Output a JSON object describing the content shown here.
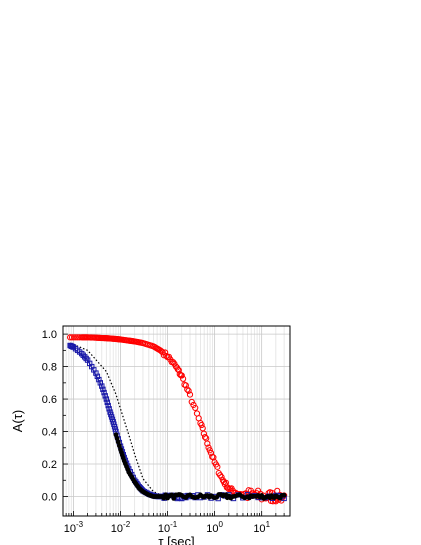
{
  "chart_data": {
    "type": "scatter",
    "title": "",
    "xlabel": "τ [sec]",
    "ylabel": "A(τ)",
    "xscale": "log",
    "xlim": [
      0.0006,
      40
    ],
    "ylim": [
      -0.12,
      1.05
    ],
    "x_ticks": [
      {
        "value": 0.001,
        "base": "10",
        "exp": "-3"
      },
      {
        "value": 0.01,
        "base": "10",
        "exp": "-2"
      },
      {
        "value": 0.1,
        "base": "10",
        "exp": "-1"
      },
      {
        "value": 1,
        "base": "10",
        "exp": "0"
      },
      {
        "value": 10,
        "base": "10",
        "exp": "1"
      }
    ],
    "y_ticks": [
      "0.0",
      "0.2",
      "0.4",
      "0.6",
      "0.8",
      "1.0"
    ],
    "grid": true,
    "legend": "none",
    "series": [
      {
        "color": "#ff0000",
        "marker": "open-circle",
        "x": [
          0.00085,
          0.0015,
          0.002,
          0.003,
          0.004,
          0.005,
          0.006,
          0.008,
          0.01,
          0.015,
          0.02,
          0.03,
          0.05,
          0.07,
          0.1,
          0.15,
          0.2,
          0.3,
          0.5,
          0.7,
          1.0,
          1.5,
          2.0,
          3.0,
          5.0,
          7.0,
          10,
          15,
          20,
          30
        ],
        "y": [
          0.98,
          0.98,
          0.98,
          0.978,
          0.976,
          0.975,
          0.973,
          0.97,
          0.967,
          0.96,
          0.955,
          0.945,
          0.925,
          0.9,
          0.865,
          0.8,
          0.74,
          0.62,
          0.45,
          0.33,
          0.21,
          0.1,
          0.05,
          0.02,
          0.01,
          0.01,
          0.0,
          0.0,
          0.0,
          0.0
        ]
      },
      {
        "color": "#1a1aa8",
        "marker": "open-square",
        "x": [
          0.00085,
          0.001,
          0.0015,
          0.002,
          0.003,
          0.004,
          0.005,
          0.006,
          0.007,
          0.008,
          0.01,
          0.012,
          0.015,
          0.02,
          0.025,
          0.03,
          0.04,
          0.05,
          0.06,
          0.08,
          0.1,
          0.15,
          0.2,
          0.3,
          0.5,
          1.0,
          2.0,
          5.0,
          10,
          20,
          30
        ],
        "y": [
          0.93,
          0.92,
          0.88,
          0.84,
          0.76,
          0.68,
          0.6,
          0.52,
          0.46,
          0.4,
          0.31,
          0.24,
          0.17,
          0.1,
          0.06,
          0.035,
          0.015,
          0.005,
          0.0,
          0.0,
          -0.005,
          0.0,
          0.0,
          0.0,
          0.0,
          0.0,
          0.0,
          0.0,
          0.0,
          0.0,
          0.0
        ]
      },
      {
        "color": "#000000",
        "marker": "filled-circle",
        "x": [
          0.008,
          0.01,
          0.012,
          0.015,
          0.02,
          0.025,
          0.03,
          0.04,
          0.05,
          0.07,
          0.1,
          0.15,
          0.2,
          0.3,
          0.5,
          0.7,
          1.0,
          1.5,
          2.0,
          3.0,
          5.0,
          7.0,
          10,
          15,
          20,
          30
        ],
        "y": [
          0.38,
          0.29,
          0.22,
          0.15,
          0.09,
          0.05,
          0.03,
          0.01,
          0.0,
          0.0,
          0.0,
          0.0,
          0.0,
          0.0,
          0.0,
          0.0,
          0.0,
          0.0,
          0.0,
          0.0,
          0.0,
          0.0,
          0.0,
          0.0,
          0.0,
          0.0
        ]
      }
    ],
    "fit_lines": [
      {
        "style": "dotted",
        "color": "#000000",
        "x": [
          0.00085,
          0.002,
          0.005,
          0.008,
          0.01,
          0.015,
          0.02,
          0.03,
          0.05,
          0.08,
          0.1,
          0.15,
          0.2,
          0.5,
          1,
          10,
          30
        ],
        "y": [
          0.945,
          0.9,
          0.77,
          0.63,
          0.54,
          0.38,
          0.26,
          0.11,
          0.03,
          0.005,
          0.0,
          0.0,
          0.0,
          0.0,
          0.0,
          0.0,
          0.0
        ]
      },
      {
        "style": "solid",
        "color": "#1a1aa8",
        "x": [
          0.00085,
          0.002,
          0.004,
          0.006,
          0.008,
          0.01,
          0.015,
          0.02,
          0.03,
          0.05,
          0.07,
          0.1,
          0.2,
          1,
          10,
          30
        ],
        "y": [
          0.93,
          0.84,
          0.68,
          0.52,
          0.4,
          0.31,
          0.17,
          0.1,
          0.035,
          0.005,
          0.0,
          0.0,
          0.0,
          0.0,
          0.0,
          0.0
        ]
      }
    ]
  }
}
